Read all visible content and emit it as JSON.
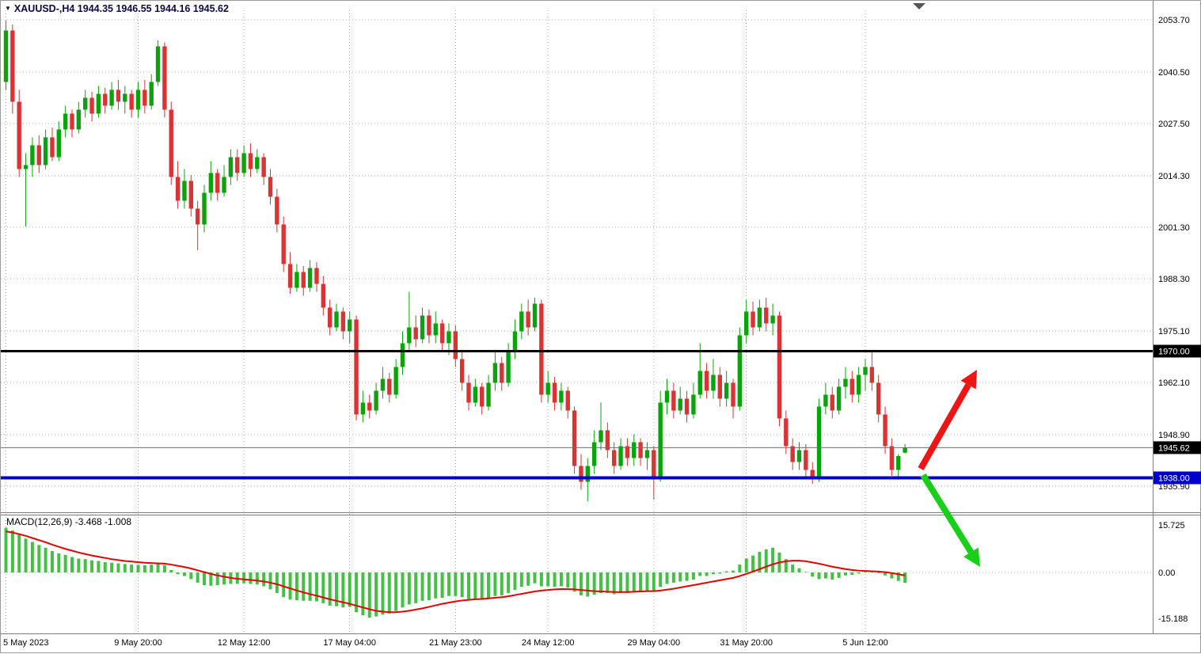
{
  "header": {
    "symbol": "XAUUSD-",
    "period": "H4",
    "readout": "XAUUSD-,H4 1944.35 1946.55 1944.16 1945.62"
  },
  "chart_data": {
    "type": "candlestick",
    "title": "XAUUSD- H4 candlestick chart with MACD",
    "symbol": "XAUUSD-",
    "timeframe": "H4",
    "ohlc_readout": {
      "open": 1944.35,
      "high": 1946.55,
      "low": 1944.16,
      "close": 1945.62
    },
    "grid": "dotted",
    "colors": {
      "bull": "#0ba30b",
      "bear": "#d93333",
      "grid": "#b6b6b6",
      "hist": "#44c144",
      "signal": "#e60000",
      "axis_text": "#000000",
      "badge_text": "#ffffff",
      "frame": "#7d7d7d",
      "current_line": "#6e6e6e"
    },
    "price_axis": {
      "ylim": [
        1929.3,
        2056.1
      ],
      "ticks": [
        2053.7,
        2040.5,
        2027.5,
        2014.3,
        2001.3,
        1988.3,
        1975.1,
        1962.1,
        1948.9,
        1935.9
      ]
    },
    "time_axis": {
      "ticks": [
        {
          "i": 0,
          "label": "5 May 2023"
        },
        {
          "i": 20,
          "label": "9 May 20:00"
        },
        {
          "i": 36,
          "label": "12 May 12:00"
        },
        {
          "i": 52,
          "label": "17 May 04:00"
        },
        {
          "i": 68,
          "label": "21 May 23:00"
        },
        {
          "i": 82,
          "label": "24 May 12:00"
        },
        {
          "i": 98,
          "label": "29 May 04:00"
        },
        {
          "i": 112,
          "label": "31 May 20:00"
        },
        {
          "i": 130,
          "label": "5 Jun 12:00"
        }
      ]
    },
    "levels": [
      {
        "name": "resistance-level",
        "price": 1970.0,
        "label": "1970.00",
        "color": "#000000",
        "width": 3
      },
      {
        "name": "support-level",
        "price": 1938.0,
        "label": "1938.00",
        "color": "#0000cd",
        "width": 4
      }
    ],
    "current_price": {
      "price": 1945.62,
      "label": "1945.62",
      "line_color": "#6e6e6e",
      "badge_bg": "#000000"
    },
    "candles": [
      [
        2038,
        2053.5,
        2036,
        2051
      ],
      [
        2051,
        2052.5,
        2030,
        2033
      ],
      [
        2033,
        2036,
        2014,
        2016
      ],
      [
        2016,
        2020,
        2001.5,
        2017
      ],
      [
        2017,
        2024,
        2014,
        2022
      ],
      [
        2022,
        2024.5,
        2015,
        2017
      ],
      [
        2017,
        2026,
        2016,
        2024
      ],
      [
        2024,
        2026.5,
        2018,
        2019
      ],
      [
        2019,
        2028,
        2018,
        2026
      ],
      [
        2026,
        2032,
        2024,
        2030
      ],
      [
        2030,
        2031,
        2024,
        2026
      ],
      [
        2026,
        2033,
        2025,
        2031
      ],
      [
        2031,
        2036,
        2029,
        2034
      ],
      [
        2034,
        2035.5,
        2028,
        2030
      ],
      [
        2030,
        2037,
        2029,
        2035
      ],
      [
        2035,
        2036.5,
        2030,
        2032
      ],
      [
        2032,
        2038,
        2031,
        2036
      ],
      [
        2036,
        2038.5,
        2031,
        2033
      ],
      [
        2033,
        2037,
        2030,
        2035
      ],
      [
        2035,
        2036,
        2029,
        2031
      ],
      [
        2031,
        2038,
        2029,
        2036
      ],
      [
        2036,
        2038.5,
        2030,
        2032
      ],
      [
        2032,
        2040,
        2031,
        2038
      ],
      [
        2038,
        2048.5,
        2037,
        2047
      ],
      [
        2047,
        2048,
        2029,
        2031
      ],
      [
        2031,
        2033,
        2012,
        2014
      ],
      [
        2014,
        2018,
        2006,
        2008
      ],
      [
        2008,
        2016,
        2006,
        2013
      ],
      [
        2013,
        2014.5,
        2004,
        2006
      ],
      [
        2006,
        2008,
        1995.5,
        2002
      ],
      [
        2002,
        2012,
        2000,
        2010
      ],
      [
        2010,
        2018,
        2008,
        2015
      ],
      [
        2015,
        2016,
        2008,
        2010
      ],
      [
        2010,
        2017,
        2009,
        2014
      ],
      [
        2014,
        2021,
        2012,
        2019
      ],
      [
        2019,
        2021,
        2013,
        2015
      ],
      [
        2015,
        2022,
        2014,
        2020
      ],
      [
        2020,
        2022.5,
        2014,
        2016
      ],
      [
        2016,
        2021,
        2015,
        2019
      ],
      [
        2019,
        2020,
        2012,
        2014
      ],
      [
        2014,
        2016,
        2007,
        2009
      ],
      [
        2009,
        2011,
        2000,
        2002
      ],
      [
        2002,
        2004,
        1990,
        1992
      ],
      [
        1992,
        1995,
        1984.5,
        1986
      ],
      [
        1986,
        1992,
        1985,
        1990
      ],
      [
        1990,
        1991.5,
        1984,
        1986
      ],
      [
        1986,
        1993,
        1985,
        1991
      ],
      [
        1991,
        1992.5,
        1985,
        1987
      ],
      [
        1987,
        1989,
        1979,
        1981
      ],
      [
        1981,
        1983,
        1974,
        1976
      ],
      [
        1976,
        1982,
        1975,
        1980
      ],
      [
        1980,
        1981,
        1973,
        1975
      ],
      [
        1975,
        1980,
        1972,
        1978
      ],
      [
        1978,
        1979,
        1952.5,
        1954
      ],
      [
        1954,
        1960,
        1952,
        1957
      ],
      [
        1957,
        1959,
        1953,
        1955
      ],
      [
        1955,
        1962,
        1954,
        1960
      ],
      [
        1960,
        1966,
        1958,
        1963
      ],
      [
        1963,
        1964.5,
        1957,
        1959
      ],
      [
        1959,
        1968,
        1958,
        1966
      ],
      [
        1966,
        1975,
        1964,
        1972
      ],
      [
        1972,
        1985,
        1970,
        1976
      ],
      [
        1976,
        1979,
        1971,
        1973
      ],
      [
        1973,
        1981,
        1972,
        1979
      ],
      [
        1979,
        1980.5,
        1972,
        1974
      ],
      [
        1974,
        1980,
        1972,
        1977
      ],
      [
        1977,
        1978,
        1970,
        1972
      ],
      [
        1972,
        1977,
        1969,
        1975
      ],
      [
        1975,
        1976.5,
        1966,
        1968
      ],
      [
        1968,
        1970,
        1960,
        1962
      ],
      [
        1962,
        1964,
        1955,
        1957
      ],
      [
        1957,
        1963,
        1956,
        1961
      ],
      [
        1961,
        1962,
        1954,
        1956
      ],
      [
        1956,
        1964,
        1955,
        1962
      ],
      [
        1962,
        1970,
        1960,
        1967
      ],
      [
        1967,
        1968.5,
        1960,
        1962
      ],
      [
        1962,
        1972,
        1961,
        1970
      ],
      [
        1970,
        1978,
        1968,
        1975
      ],
      [
        1975,
        1982,
        1973,
        1980
      ],
      [
        1980,
        1983,
        1974,
        1976
      ],
      [
        1976,
        1983.5,
        1975,
        1982
      ],
      [
        1982,
        1983,
        1957,
        1959
      ],
      [
        1959,
        1965,
        1957,
        1962
      ],
      [
        1962,
        1963.5,
        1955,
        1957
      ],
      [
        1957,
        1962,
        1955,
        1960
      ],
      [
        1960,
        1961,
        1953,
        1955
      ],
      [
        1955,
        1956,
        1939,
        1941
      ],
      [
        1941,
        1944,
        1935,
        1937
      ],
      [
        1937,
        1943,
        1932,
        1941
      ],
      [
        1941,
        1950,
        1939,
        1947
      ],
      [
        1947,
        1957,
        1945,
        1950
      ],
      [
        1950,
        1952,
        1943,
        1945
      ],
      [
        1945,
        1947,
        1939,
        1941
      ],
      [
        1941,
        1948,
        1940,
        1946
      ],
      [
        1946,
        1948,
        1941,
        1943
      ],
      [
        1943,
        1949,
        1941,
        1947
      ],
      [
        1947,
        1948,
        1941,
        1943
      ],
      [
        1943,
        1947,
        1940,
        1945
      ],
      [
        1945,
        1946,
        1932.5,
        1938
      ],
      [
        1938,
        1960,
        1937,
        1957
      ],
      [
        1957,
        1963,
        1954,
        1960
      ],
      [
        1960,
        1962,
        1953,
        1955
      ],
      [
        1955,
        1961,
        1954,
        1958
      ],
      [
        1958,
        1960,
        1952,
        1954
      ],
      [
        1954,
        1962,
        1953,
        1959
      ],
      [
        1959,
        1972,
        1958,
        1965
      ],
      [
        1965,
        1967,
        1958,
        1960
      ],
      [
        1960,
        1968,
        1958,
        1964
      ],
      [
        1964,
        1966,
        1956,
        1958
      ],
      [
        1958,
        1965,
        1956,
        1962
      ],
      [
        1962,
        1963,
        1953,
        1956
      ],
      [
        1956,
        1976,
        1955,
        1974
      ],
      [
        1974,
        1983,
        1972,
        1980
      ],
      [
        1980,
        1982.5,
        1974,
        1976
      ],
      [
        1976,
        1983,
        1975,
        1981
      ],
      [
        1981,
        1983.5,
        1975,
        1977
      ],
      [
        1977,
        1982,
        1974,
        1979
      ],
      [
        1979,
        1980,
        1951,
        1953
      ],
      [
        1953,
        1955,
        1944,
        1946
      ],
      [
        1946,
        1948,
        1940,
        1942
      ],
      [
        1942,
        1947,
        1940,
        1945
      ],
      [
        1945,
        1946.5,
        1938,
        1940
      ],
      [
        1940,
        1942,
        1936.5,
        1938
      ],
      [
        1938,
        1958,
        1937,
        1956
      ],
      [
        1956,
        1962,
        1954,
        1959
      ],
      [
        1959,
        1961,
        1953,
        1955
      ],
      [
        1955,
        1963,
        1954,
        1961
      ],
      [
        1961,
        1966,
        1958,
        1963
      ],
      [
        1963,
        1965,
        1957,
        1959
      ],
      [
        1959,
        1966,
        1957,
        1964
      ],
      [
        1964,
        1968,
        1960,
        1966
      ],
      [
        1966,
        1970,
        1960,
        1962
      ],
      [
        1962,
        1964,
        1952,
        1954
      ],
      [
        1954,
        1956,
        1944,
        1946
      ],
      [
        1946,
        1948,
        1938.5,
        1940
      ],
      [
        1940,
        1944,
        1937.5,
        1943.5
      ],
      [
        1944.35,
        1946.55,
        1944.16,
        1945.62
      ]
    ],
    "macd": {
      "readout": "MACD(12,26,9) -3.468 -1.008",
      "name": "MACD(12,26,9)",
      "main_value": -3.468,
      "signal_value": -1.008,
      "ylim": [
        -20.2,
        19.4
      ],
      "ticks": [
        {
          "value": 15.725,
          "label": "15.725"
        },
        {
          "value": 0,
          "label": "0.00"
        },
        {
          "value": -15.188,
          "label": "-15.188"
        }
      ],
      "hist": [
        14.8,
        13.9,
        12.6,
        11.2,
        10.1,
        9.1,
        8.2,
        7.1,
        6.3,
        5.8,
        5.1,
        4.6,
        4.4,
        4.0,
        3.8,
        3.4,
        3.2,
        3.0,
        2.8,
        2.6,
        2.5,
        2.4,
        2.6,
        3.0,
        2.4,
        0.8,
        -0.6,
        -1.2,
        -2.2,
        -3.4,
        -4.2,
        -4.4,
        -4.2,
        -4.0,
        -3.8,
        -3.8,
        -3.6,
        -3.8,
        -4.0,
        -4.6,
        -5.6,
        -6.8,
        -8.2,
        -9.0,
        -9.2,
        -9.4,
        -9.4,
        -9.6,
        -10.2,
        -11.0,
        -11.2,
        -11.6,
        -11.4,
        -13.2,
        -14.2,
        -15.0,
        -14.6,
        -14.0,
        -13.6,
        -12.8,
        -11.6,
        -10.6,
        -10.2,
        -9.4,
        -9.2,
        -8.6,
        -8.4,
        -7.8,
        -7.8,
        -8.2,
        -8.8,
        -8.8,
        -9.0,
        -8.6,
        -7.8,
        -7.6,
        -6.8,
        -5.8,
        -4.8,
        -4.4,
        -3.6,
        -4.6,
        -4.6,
        -4.8,
        -4.6,
        -5.0,
        -6.4,
        -7.6,
        -8.0,
        -7.4,
        -6.8,
        -6.8,
        -7.2,
        -6.8,
        -6.8,
        -6.4,
        -6.4,
        -6.0,
        -6.4,
        -4.8,
        -3.8,
        -3.4,
        -3.0,
        -2.8,
        -2.4,
        -1.2,
        -1.2,
        -0.6,
        -0.4,
        0.4,
        0.6,
        2.6,
        4.6,
        5.6,
        6.8,
        7.6,
        8.2,
        6.6,
        4.4,
        2.6,
        1.4,
        0.2,
        -1.4,
        -2.2,
        -2.0,
        -2.4,
        -1.8,
        -1.0,
        -0.8,
        -0.4,
        0.2,
        0.4,
        -0.2,
        -1.0,
        -2.0,
        -2.8,
        -3.468
      ],
      "signal": [
        13.6,
        13.2,
        12.7,
        12.1,
        11.4,
        10.7,
        10.0,
        9.2,
        8.5,
        7.8,
        7.2,
        6.6,
        6.1,
        5.6,
        5.2,
        4.8,
        4.4,
        4.1,
        3.8,
        3.6,
        3.4,
        3.2,
        3.1,
        3.0,
        2.9,
        2.6,
        2.2,
        1.8,
        1.3,
        0.7,
        0.1,
        -0.5,
        -1.0,
        -1.4,
        -1.8,
        -2.1,
        -2.3,
        -2.5,
        -2.7,
        -3.0,
        -3.4,
        -3.9,
        -4.6,
        -5.3,
        -6.0,
        -6.6,
        -7.2,
        -7.7,
        -8.3,
        -8.9,
        -9.4,
        -9.9,
        -10.4,
        -11.0,
        -11.6,
        -12.2,
        -12.7,
        -13.0,
        -13.2,
        -13.2,
        -13.0,
        -12.7,
        -12.3,
        -11.9,
        -11.4,
        -10.9,
        -10.4,
        -10.0,
        -9.6,
        -9.3,
        -9.1,
        -8.9,
        -8.8,
        -8.6,
        -8.4,
        -8.2,
        -7.9,
        -7.5,
        -7.1,
        -6.7,
        -6.3,
        -6.0,
        -5.8,
        -5.6,
        -5.5,
        -5.5,
        -5.6,
        -5.8,
        -6.0,
        -6.2,
        -6.3,
        -6.4,
        -6.5,
        -6.5,
        -6.5,
        -6.4,
        -6.3,
        -6.2,
        -6.2,
        -6.0,
        -5.7,
        -5.4,
        -5.0,
        -4.6,
        -4.2,
        -3.8,
        -3.4,
        -3.0,
        -2.6,
        -2.2,
        -1.8,
        -1.2,
        -0.5,
        0.3,
        1.1,
        1.9,
        2.7,
        3.3,
        3.7,
        3.9,
        3.9,
        3.7,
        3.3,
        2.9,
        2.4,
        1.9,
        1.5,
        1.1,
        0.8,
        0.6,
        0.5,
        0.4,
        0.3,
        0.1,
        -0.2,
        -0.6,
        -1.008
      ]
    },
    "annotations": [
      {
        "name": "trend-arrow-up",
        "direction": "up",
        "color": "#ed1515",
        "from": [
          1162,
          591
        ],
        "to": [
          1233,
          466
        ]
      },
      {
        "name": "trend-arrow-down",
        "direction": "down",
        "color": "#19cf19",
        "from": [
          1165,
          599
        ],
        "to": [
          1237,
          715
        ]
      }
    ]
  }
}
